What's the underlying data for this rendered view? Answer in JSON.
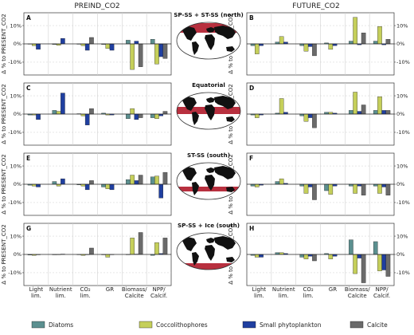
{
  "figure": {
    "column_titles": [
      "PREIND_CO2",
      "FUTURE_CO2"
    ],
    "region_titles": [
      "SP-SS + ST-SS (north)",
      "Equatorial",
      "ST-SS (south)",
      "SP-SS + Ice (south)"
    ],
    "panel_letters": [
      "A",
      "B",
      "C",
      "D",
      "E",
      "F",
      "G",
      "H"
    ],
    "y_axis_label": "Δ % to PRESENT_CO2",
    "y_tick_labels": [
      "10%",
      "0%",
      "-10%"
    ],
    "category_labels": [
      "Light\nlim.",
      "Nutrient\nlim.",
      "CO₂\nlim.",
      "GR",
      "Biomass/\nCalcite",
      "NPP/\nCalcif."
    ],
    "legend": [
      {
        "label": "Diatoms",
        "color": "#5b8f8f"
      },
      {
        "label": "Coccolithophores",
        "color": "#c5cf5a"
      },
      {
        "label": "Small phytoplankton",
        "color": "#1f3fa0"
      },
      {
        "label": "Calcite",
        "color": "#6a6a6a"
      }
    ],
    "map": {
      "ocean": "#ffffff",
      "land": "#111111",
      "highlight": "#b01a2a"
    }
  },
  "chart_data": [
    {
      "panel": "A",
      "type": "bar",
      "column": "PREIND_CO2",
      "region": "SP-SS + ST-SS (north)",
      "ylim": [
        -17,
        17
      ],
      "categories": [
        "Light lim.",
        "Nutrient lim.",
        "CO₂ lim.",
        "GR",
        "Biomass/Calcite",
        "NPP/Calcif."
      ],
      "series": [
        {
          "name": "Diatoms",
          "values": [
            0.0,
            -0.3,
            -0.2,
            -0.3,
            2.0,
            2.5
          ]
        },
        {
          "name": "Coccolithophores",
          "values": [
            -1.0,
            -0.8,
            -1.0,
            -2.5,
            -14.0,
            -11.0
          ]
        },
        {
          "name": "Small phytoplankton",
          "values": [
            -3.0,
            3.0,
            -3.5,
            -3.5,
            1.5,
            -7.0
          ]
        },
        {
          "name": "Calcite",
          "values": [
            null,
            null,
            3.5,
            null,
            -12.5,
            -8.0
          ]
        }
      ]
    },
    {
      "panel": "B",
      "type": "bar",
      "column": "FUTURE_CO2",
      "region": "SP-SS + ST-SS (north)",
      "ylim": [
        -17,
        17
      ],
      "categories": [
        "Light lim.",
        "Nutrient lim.",
        "CO₂ lim.",
        "GR",
        "Biomass/Calcite",
        "NPP/Calcif."
      ],
      "series": [
        {
          "name": "Diatoms",
          "values": [
            -1.0,
            1.0,
            -1.0,
            0.5,
            1.5,
            1.5
          ]
        },
        {
          "name": "Coccolithophores",
          "values": [
            -5.5,
            4.0,
            -4.0,
            -3.0,
            14.5,
            9.5
          ]
        },
        {
          "name": "Small phytoplankton",
          "values": [
            -1.0,
            1.0,
            -1.5,
            -1.0,
            -0.5,
            -0.5
          ]
        },
        {
          "name": "Calcite",
          "values": [
            null,
            null,
            -6.5,
            null,
            6.0,
            2.5
          ]
        }
      ]
    },
    {
      "panel": "C",
      "type": "bar",
      "column": "PREIND_CO2",
      "region": "Equatorial",
      "ylim": [
        -17,
        17
      ],
      "categories": [
        "Light lim.",
        "Nutrient lim.",
        "CO₂ lim.",
        "GR",
        "Biomass/Calcite",
        "NPP/Calcif."
      ],
      "series": [
        {
          "name": "Diatoms",
          "values": [
            -0.5,
            2.0,
            0.2,
            0.5,
            -2.5,
            -2.0
          ]
        },
        {
          "name": "Coccolithophores",
          "values": [
            -0.5,
            1.5,
            -1.0,
            -0.5,
            3.0,
            -2.5
          ]
        },
        {
          "name": "Small phytoplankton",
          "values": [
            -3.0,
            11.5,
            -6.0,
            -0.5,
            -3.0,
            -1.0
          ]
        },
        {
          "name": "Calcite",
          "values": [
            null,
            null,
            3.0,
            null,
            -2.0,
            1.5
          ]
        }
      ]
    },
    {
      "panel": "D",
      "type": "bar",
      "column": "FUTURE_CO2",
      "region": "Equatorial",
      "ylim": [
        -17,
        17
      ],
      "categories": [
        "Light lim.",
        "Nutrient lim.",
        "CO₂ lim.",
        "GR",
        "Biomass/Calcite",
        "NPP/Calcif."
      ],
      "series": [
        {
          "name": "Diatoms",
          "values": [
            -0.5,
            0.5,
            -1.0,
            1.0,
            2.0,
            2.0
          ]
        },
        {
          "name": "Coccolithophores",
          "values": [
            -2.0,
            8.5,
            -4.0,
            1.0,
            12.0,
            9.5
          ]
        },
        {
          "name": "Small phytoplankton",
          "values": [
            -0.5,
            1.0,
            -2.0,
            0.5,
            1.5,
            2.0
          ]
        },
        {
          "name": "Calcite",
          "values": [
            null,
            null,
            -7.5,
            null,
            5.0,
            2.0
          ]
        }
      ]
    },
    {
      "panel": "E",
      "type": "bar",
      "column": "PREIND_CO2",
      "region": "ST-SS (south)",
      "ylim": [
        -17,
        17
      ],
      "categories": [
        "Light lim.",
        "Nutrient lim.",
        "CO₂ lim.",
        "GR",
        "Biomass/Calcite",
        "NPP/Calcif."
      ],
      "series": [
        {
          "name": "Diatoms",
          "values": [
            -0.5,
            1.5,
            -0.3,
            -1.5,
            2.5,
            4.0
          ]
        },
        {
          "name": "Coccolithophores",
          "values": [
            -1.0,
            -1.0,
            -1.0,
            -2.5,
            5.0,
            4.5
          ]
        },
        {
          "name": "Small phytoplankton",
          "values": [
            -1.5,
            3.0,
            -3.0,
            -3.0,
            2.0,
            -7.5
          ]
        },
        {
          "name": "Calcite",
          "values": [
            null,
            null,
            2.0,
            null,
            5.0,
            6.5
          ]
        }
      ]
    },
    {
      "panel": "F",
      "type": "bar",
      "column": "FUTURE_CO2",
      "region": "ST-SS (south)",
      "ylim": [
        -17,
        17
      ],
      "categories": [
        "Light lim.",
        "Nutrient lim.",
        "CO₂ lim.",
        "GR",
        "Biomass/Calcite",
        "NPP/Calcif."
      ],
      "series": [
        {
          "name": "Diatoms",
          "values": [
            -1.0,
            1.5,
            -1.0,
            -3.5,
            -1.0,
            -1.0
          ]
        },
        {
          "name": "Coccolithophores",
          "values": [
            -1.5,
            3.0,
            -5.0,
            -5.5,
            -5.0,
            -5.0
          ]
        },
        {
          "name": "Small phytoplankton",
          "values": [
            -0.5,
            0.5,
            -1.5,
            -1.0,
            -1.0,
            -1.5
          ]
        },
        {
          "name": "Calcite",
          "values": [
            null,
            null,
            -8.5,
            null,
            -6.0,
            -6.0
          ]
        }
      ]
    },
    {
      "panel": "G",
      "type": "bar",
      "column": "PREIND_CO2",
      "region": "SP-SS + Ice (south)",
      "ylim": [
        -17,
        17
      ],
      "categories": [
        "Light lim.",
        "Nutrient lim.",
        "CO₂ lim.",
        "GR",
        "Biomass/Calcite",
        "NPP/Calcif."
      ],
      "series": [
        {
          "name": "Diatoms",
          "values": [
            -0.3,
            -0.2,
            0.0,
            -0.2,
            0.0,
            -0.5
          ]
        },
        {
          "name": "Coccolithophores",
          "values": [
            -0.5,
            0.0,
            -0.5,
            -1.5,
            9.0,
            6.5
          ]
        },
        {
          "name": "Small phytoplankton",
          "values": [
            -0.2,
            0.2,
            0.0,
            0.0,
            0.2,
            0.5
          ]
        },
        {
          "name": "Calcite",
          "values": [
            null,
            null,
            3.5,
            null,
            12.0,
            9.0
          ]
        }
      ]
    },
    {
      "panel": "H",
      "type": "bar",
      "column": "FUTURE_CO2",
      "region": "SP-SS + Ice (south)",
      "ylim": [
        -17,
        17
      ],
      "categories": [
        "Light lim.",
        "Nutrient lim.",
        "CO₂ lim.",
        "GR",
        "Biomass/Calcite",
        "NPP/Calcif."
      ],
      "series": [
        {
          "name": "Diatoms",
          "values": [
            -0.5,
            1.0,
            -1.5,
            0.5,
            8.0,
            7.0
          ]
        },
        {
          "name": "Coccolithophores",
          "values": [
            -1.5,
            1.0,
            -2.5,
            -2.5,
            -10.5,
            -9.0
          ]
        },
        {
          "name": "Small phytoplankton",
          "values": [
            -1.5,
            0.5,
            -1.0,
            -1.0,
            -2.0,
            -8.5
          ]
        },
        {
          "name": "Calcite",
          "values": [
            null,
            null,
            -3.5,
            null,
            -15.5,
            -12.0
          ]
        }
      ]
    }
  ]
}
